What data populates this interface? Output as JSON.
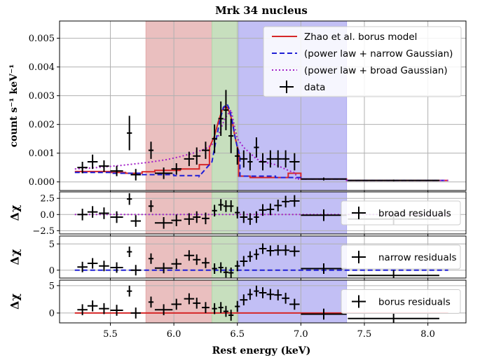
{
  "chart_data": {
    "type": "scatter",
    "title": "Mrk 34 nucleus",
    "xlabel": "Rest energy (keV)",
    "xlim": [
      5.1,
      8.3
    ],
    "xticks": [
      5.5,
      6.0,
      6.5,
      7.0,
      7.5,
      8.0
    ],
    "xtick_labels": [
      "5.5",
      "6.0",
      "6.5",
      "7.0",
      "7.5",
      "8.0"
    ],
    "shaded_bands": [
      {
        "x": [
          5.78,
          6.3
        ],
        "color": "#e3a9a9"
      },
      {
        "x": [
          6.3,
          6.51
        ],
        "color": "#b4d4a8"
      },
      {
        "x": [
          6.51,
          7.36
        ],
        "color": "#aeaaf2"
      }
    ],
    "panels": [
      {
        "id": "spectrum",
        "ylabel": "count s⁻¹ keV⁻¹",
        "ylim": [
          -0.0003,
          0.0056
        ],
        "yticks": [
          0.0,
          0.001,
          0.002,
          0.003,
          0.004,
          0.005
        ],
        "ytick_labels": [
          "0.000",
          "0.001",
          "0.002",
          "0.003",
          "0.004",
          "0.005"
        ],
        "legend": {
          "placement": "top-right",
          "entries": [
            {
              "label": "Zhao et al. borus model",
              "color": "#d62728",
              "style": "solid"
            },
            {
              "label": "(power law + narrow Gaussian)",
              "color": "#1f1fd6",
              "style": "dashed"
            },
            {
              "label": "(power law + broad Gaussian)",
              "color": "#a31fc7",
              "style": "dotted"
            },
            {
              "label": "data",
              "color": "#000000",
              "style": "cross"
            }
          ]
        },
        "data": {
          "x": [
            5.28,
            5.36,
            5.45,
            5.55,
            5.65,
            5.7,
            5.82,
            5.92,
            6.02,
            6.12,
            6.18,
            6.25,
            6.32,
            6.37,
            6.41,
            6.45,
            6.5,
            6.55,
            6.6,
            6.65,
            6.7,
            6.76,
            6.82,
            6.88,
            6.95,
            7.18,
            7.73
          ],
          "y": [
            0.0005,
            0.0007,
            0.00055,
            0.00038,
            0.0017,
            0.00025,
            0.0011,
            0.0003,
            0.00045,
            0.0008,
            0.0009,
            0.0011,
            0.0015,
            0.0022,
            0.0025,
            0.0016,
            0.0009,
            0.0008,
            0.0007,
            0.0012,
            0.0007,
            0.0008,
            0.0008,
            0.0008,
            0.0007,
            0.0001,
            5e-05
          ],
          "xerr": [
            0.04,
            0.04,
            0.04,
            0.05,
            0.02,
            0.04,
            0.02,
            0.07,
            0.04,
            0.04,
            0.03,
            0.03,
            0.02,
            0.02,
            0.02,
            0.02,
            0.02,
            0.03,
            0.02,
            0.02,
            0.03,
            0.03,
            0.03,
            0.03,
            0.04,
            0.18,
            0.36
          ],
          "yerr": [
            0.0002,
            0.00025,
            0.0002,
            0.00018,
            0.0006,
            0.0002,
            0.0003,
            0.0002,
            0.0002,
            0.00025,
            0.0003,
            0.0003,
            0.0005,
            0.0006,
            0.0007,
            0.0006,
            0.0003,
            0.0003,
            0.0003,
            0.00035,
            0.0003,
            0.0003,
            0.0003,
            0.0003,
            0.0003,
            5e-05,
            3e-05
          ]
        },
        "models": [
          {
            "name": "borus",
            "color": "#d62728",
            "style": "solid",
            "x": [
              5.22,
              5.5,
              5.5,
              5.62,
              5.62,
              5.75,
              5.75,
              5.85,
              5.85,
              6.05,
              6.05,
              6.2,
              6.2,
              6.28,
              6.28,
              6.32,
              6.35,
              6.38,
              6.4,
              6.42,
              6.44,
              6.46,
              6.48,
              6.5,
              6.51,
              6.51,
              6.6,
              6.6,
              6.9,
              6.9,
              7.0,
              7.0,
              7.36,
              7.36,
              8.16
            ],
            "y": [
              0.00036,
              0.00036,
              0.00033,
              0.00033,
              0.0003,
              0.0003,
              0.00035,
              0.00035,
              0.0004,
              0.0004,
              0.00045,
              0.00045,
              0.0006,
              0.0006,
              0.0012,
              0.0016,
              0.0021,
              0.0025,
              0.0026,
              0.0026,
              0.0024,
              0.0021,
              0.0016,
              0.0012,
              0.0011,
              0.0002,
              0.0002,
              0.00015,
              0.00015,
              0.0003,
              0.0003,
              0.0001,
              0.0001,
              5e-05,
              5e-05
            ]
          },
          {
            "name": "narrow",
            "color": "#1f1fd6",
            "style": "dashed",
            "x": [
              5.22,
              5.5,
              5.5,
              5.75,
              5.75,
              6.0,
              6.0,
              6.2,
              6.2,
              6.3,
              6.33,
              6.36,
              6.39,
              6.42,
              6.44,
              6.46,
              6.48,
              6.5,
              6.52,
              6.52,
              6.8,
              6.8,
              7.0,
              7.0,
              7.36,
              7.36,
              8.16
            ],
            "y": [
              0.00033,
              0.00033,
              0.0003,
              0.0003,
              0.00025,
              0.00025,
              0.00022,
              0.00022,
              0.0002,
              0.0007,
              0.0014,
              0.0021,
              0.0026,
              0.0027,
              0.0025,
              0.0021,
              0.0016,
              0.0012,
              0.0009,
              0.0002,
              0.0002,
              0.00015,
              0.00015,
              0.0001,
              0.0001,
              5e-05,
              5e-05
            ]
          },
          {
            "name": "broad",
            "color": "#a31fc7",
            "style": "dotted",
            "x": [
              5.22,
              5.4,
              5.6,
              5.8,
              5.95,
              6.05,
              6.15,
              6.25,
              6.3,
              6.35,
              6.4,
              6.45,
              6.5,
              6.55,
              6.6,
              6.65,
              6.7,
              6.8,
              6.9,
              6.96,
              6.96,
              7.36,
              7.36,
              8.16
            ],
            "y": [
              0.00045,
              0.0005,
              0.00058,
              0.00068,
              0.00078,
              0.00088,
              0.001,
              0.00115,
              0.0013,
              0.0016,
              0.0022,
              0.0025,
              0.0015,
              0.0012,
              0.001,
              0.0008,
              0.0007,
              0.0006,
              0.0004,
              0.0003,
              0.0001,
              0.0001,
              5e-05,
              5e-05
            ]
          }
        ]
      },
      {
        "id": "broad_residuals",
        "ylabel": "Δχ",
        "ylim": [
          -3.0,
          3.5
        ],
        "yticks": [
          2.5,
          0.0,
          -2.5
        ],
        "ytick_labels": [
          "2.5",
          "0.0",
          "−2.5"
        ],
        "legend": {
          "placement": "right",
          "entries": [
            {
              "label": "broad residuals",
              "color": "#000000",
              "style": "cross"
            }
          ]
        },
        "zero_line": {
          "color": "#a31fc7",
          "style": "dotted"
        },
        "data": {
          "x": [
            5.28,
            5.36,
            5.45,
            5.55,
            5.65,
            5.7,
            5.82,
            5.92,
            6.02,
            6.12,
            6.18,
            6.25,
            6.32,
            6.37,
            6.41,
            6.45,
            6.5,
            6.55,
            6.6,
            6.65,
            6.7,
            6.76,
            6.82,
            6.88,
            6.95,
            7.18,
            7.73
          ],
          "y": [
            0.0,
            0.4,
            0.2,
            -0.4,
            2.4,
            -1.0,
            1.3,
            -1.3,
            -0.9,
            -0.7,
            -0.4,
            -0.6,
            0.6,
            1.5,
            1.3,
            1.3,
            0.3,
            -0.4,
            -0.7,
            -0.4,
            0.7,
            0.8,
            1.4,
            2.0,
            2.1,
            -0.1,
            -0.7
          ],
          "xerr": [
            0.04,
            0.04,
            0.04,
            0.05,
            0.02,
            0.04,
            0.02,
            0.07,
            0.04,
            0.04,
            0.03,
            0.03,
            0.02,
            0.02,
            0.02,
            0.02,
            0.02,
            0.03,
            0.02,
            0.02,
            0.03,
            0.03,
            0.03,
            0.03,
            0.04,
            0.18,
            0.36
          ],
          "yerr": [
            0.9,
            0.9,
            0.9,
            0.9,
            0.9,
            0.9,
            0.9,
            0.9,
            0.9,
            0.9,
            0.9,
            0.9,
            0.9,
            0.9,
            0.9,
            0.9,
            0.9,
            0.9,
            0.9,
            0.9,
            0.9,
            0.9,
            0.9,
            0.9,
            0.9,
            0.9,
            0.9
          ]
        }
      },
      {
        "id": "narrow_residuals",
        "ylabel": "Δχ",
        "ylim": [
          -1.5,
          6.5
        ],
        "yticks": [
          5,
          0
        ],
        "ytick_labels": [
          "5",
          "0"
        ],
        "legend": {
          "placement": "right",
          "entries": [
            {
              "label": "narrow residuals",
              "color": "#000000",
              "style": "cross"
            }
          ]
        },
        "zero_line": {
          "color": "#1f1fd6",
          "style": "dashed"
        },
        "data": {
          "x": [
            5.28,
            5.36,
            5.45,
            5.55,
            5.65,
            5.7,
            5.82,
            5.92,
            6.02,
            6.12,
            6.18,
            6.25,
            6.32,
            6.37,
            6.41,
            6.45,
            6.5,
            6.55,
            6.6,
            6.65,
            6.7,
            6.76,
            6.82,
            6.88,
            6.95,
            7.18,
            7.73
          ],
          "y": [
            0.6,
            1.3,
            0.8,
            0.5,
            3.5,
            0.0,
            2.2,
            0.4,
            1.2,
            2.8,
            2.0,
            1.4,
            0.3,
            0.5,
            -0.4,
            -0.5,
            0.8,
            1.7,
            2.6,
            3.0,
            4.1,
            3.7,
            3.8,
            3.8,
            3.6,
            0.3,
            -1.0
          ],
          "xerr": [
            0.04,
            0.04,
            0.04,
            0.05,
            0.02,
            0.04,
            0.02,
            0.07,
            0.04,
            0.04,
            0.03,
            0.03,
            0.02,
            0.02,
            0.02,
            0.02,
            0.02,
            0.03,
            0.02,
            0.02,
            0.03,
            0.03,
            0.03,
            0.03,
            0.04,
            0.18,
            0.36
          ],
          "yerr": [
            1.0,
            1.0,
            1.0,
            1.0,
            1.0,
            1.0,
            1.0,
            1.0,
            1.0,
            1.0,
            1.0,
            1.0,
            1.0,
            1.0,
            1.0,
            1.0,
            1.0,
            1.0,
            1.0,
            1.0,
            1.0,
            1.0,
            1.0,
            1.0,
            1.0,
            1.0,
            1.0
          ]
        }
      },
      {
        "id": "borus_residuals",
        "ylabel": "Δχ",
        "ylim": [
          -1.8,
          6.0
        ],
        "yticks": [
          5,
          0
        ],
        "ytick_labels": [
          "5",
          "0"
        ],
        "legend": {
          "placement": "right",
          "entries": [
            {
              "label": "borus residuals",
              "color": "#000000",
              "style": "cross"
            }
          ]
        },
        "zero_line": {
          "color": "#d62728",
          "style": "solid"
        },
        "data": {
          "x": [
            5.28,
            5.36,
            5.45,
            5.55,
            5.65,
            5.7,
            5.82,
            5.92,
            6.02,
            6.12,
            6.18,
            6.25,
            6.32,
            6.37,
            6.41,
            6.45,
            6.5,
            6.55,
            6.6,
            6.65,
            6.7,
            6.76,
            6.82,
            6.88,
            6.95,
            7.18,
            7.73
          ],
          "y": [
            0.6,
            1.3,
            0.8,
            0.5,
            4.0,
            0.0,
            2.0,
            0.6,
            1.6,
            2.6,
            1.8,
            1.0,
            0.8,
            1.0,
            0.3,
            -0.4,
            1.2,
            2.4,
            3.4,
            4.0,
            3.7,
            3.4,
            3.3,
            2.7,
            1.6,
            -0.2,
            -1.0
          ],
          "xerr": [
            0.04,
            0.04,
            0.04,
            0.05,
            0.02,
            0.04,
            0.02,
            0.07,
            0.04,
            0.04,
            0.03,
            0.03,
            0.02,
            0.02,
            0.02,
            0.02,
            0.02,
            0.03,
            0.02,
            0.02,
            0.03,
            0.03,
            0.03,
            0.03,
            0.04,
            0.18,
            0.36
          ],
          "yerr": [
            1.0,
            1.0,
            1.0,
            1.0,
            1.0,
            1.0,
            1.0,
            1.0,
            1.0,
            1.0,
            1.0,
            1.0,
            1.0,
            1.0,
            1.0,
            1.0,
            1.0,
            1.0,
            1.0,
            1.0,
            1.0,
            1.0,
            1.0,
            1.0,
            1.0,
            1.0,
            1.0
          ]
        }
      }
    ]
  }
}
